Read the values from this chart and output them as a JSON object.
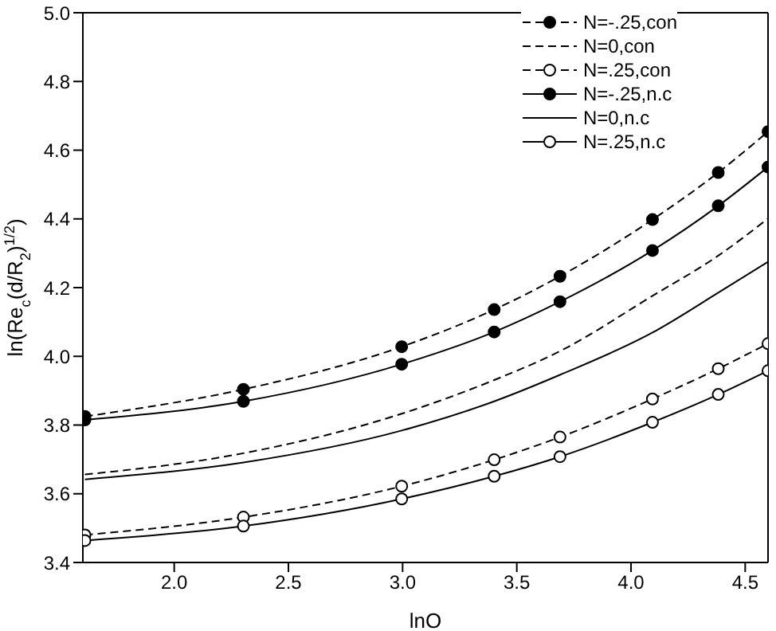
{
  "chart_data": {
    "type": "line",
    "xlabel": "lnO",
    "ylabel": "ln(Re$_{c}$(d/R$_{2}$)$^{1/2}$)",
    "x": [
      1.609,
      2.303,
      2.996,
      3.401,
      3.689,
      4.094,
      4.382,
      4.6
    ],
    "xlim": [
      1.6,
      4.6
    ],
    "xticks": [
      {
        "value": 2,
        "label": "2.0"
      },
      2.5,
      {
        "value": 3,
        "label": "3.0"
      },
      3.5,
      {
        "value": 4,
        "label": "4.0"
      },
      4.5
    ],
    "ylim": [
      3.4,
      5.0
    ],
    "yticks": [
      {
        "value": 3.4,
        "label": "3.4"
      },
      {
        "value": 3.6,
        "label": "3.6"
      },
      {
        "value": 3.8,
        "label": "3.8"
      },
      {
        "value": 4,
        "label": "4.0"
      },
      {
        "value": 4.2,
        "label": "4.2"
      },
      {
        "value": 4.4,
        "label": "4.4"
      },
      {
        "value": 4.6,
        "label": "4.6"
      },
      {
        "value": 4.8,
        "label": "4.8"
      },
      {
        "value": 5,
        "label": "5.0"
      }
    ],
    "grid": false,
    "legend": "top right",
    "series": [
      {
        "name": "N=-.25,con",
        "color": "#000000",
        "line_style": "dashed",
        "marker": "circle",
        "values": [
          3.825,
          3.904,
          4.028,
          4.136,
          4.233,
          4.398,
          4.535,
          4.654
        ]
      },
      {
        "name": "N=0,con",
        "color": "#000000",
        "line_style": "dashed",
        "marker": "none",
        "values": [
          3.656,
          3.718,
          3.833,
          3.931,
          4.015,
          4.176,
          4.293,
          4.401
        ]
      },
      {
        "name": "N=.25,con",
        "color": "#000000",
        "line_style": "dashed",
        "marker": "circle-open",
        "values": [
          3.48,
          3.532,
          3.622,
          3.699,
          3.765,
          3.876,
          3.964,
          4.037
        ]
      },
      {
        "name": "N=-.25,n.c",
        "color": "#000000",
        "line_style": "solid",
        "marker": "circle",
        "values": [
          3.815,
          3.869,
          3.977,
          4.071,
          4.159,
          4.308,
          4.438,
          4.551
        ]
      },
      {
        "name": "N=0,n.c",
        "color": "#000000",
        "line_style": "solid",
        "marker": "none",
        "values": [
          3.642,
          3.691,
          3.784,
          3.869,
          3.946,
          4.069,
          4.185,
          4.275
        ]
      },
      {
        "name": "N=.25,n.c",
        "color": "#000000",
        "line_style": "solid",
        "marker": "circle-open",
        "values": [
          3.464,
          3.506,
          3.585,
          3.651,
          3.708,
          3.808,
          3.889,
          3.958
        ]
      }
    ]
  }
}
